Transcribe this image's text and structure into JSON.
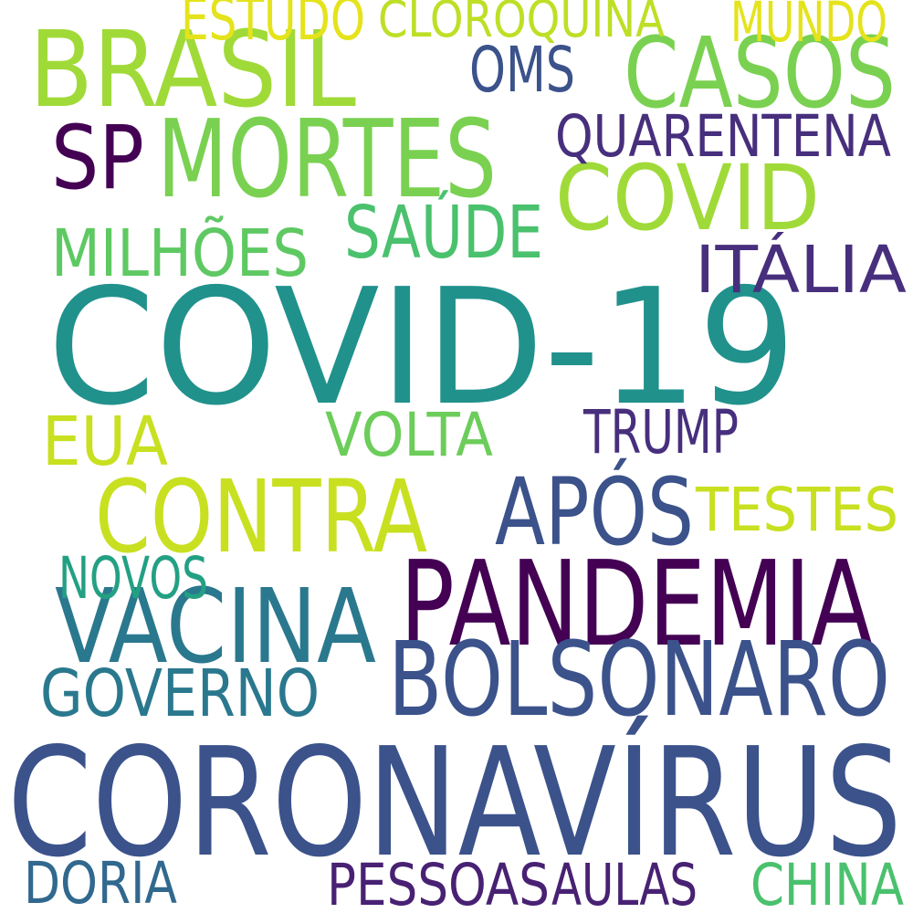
{
  "words": [
    {
      "text": "COVID-19",
      "color": "#21918c"
    },
    {
      "text": "CORONAVÍRUS",
      "color": "#3b528b"
    },
    {
      "text": "PANDEMIA",
      "color": "#440154"
    },
    {
      "text": "BRASIL",
      "color": "#a0da39"
    },
    {
      "text": "CASOS",
      "color": "#7ad151"
    },
    {
      "text": "MORTES",
      "color": "#7ad151"
    },
    {
      "text": "COVID",
      "color": "#a0da39"
    },
    {
      "text": "CONTRA",
      "color": "#c8e020"
    },
    {
      "text": "BOLSONARO",
      "color": "#3b528b"
    },
    {
      "text": "VACINA",
      "color": "#2a788e"
    },
    {
      "text": "APÓS",
      "color": "#3b528b"
    },
    {
      "text": "SP",
      "color": "#440154"
    },
    {
      "text": "SAÚDE",
      "color": "#4ac16d"
    },
    {
      "text": "MILHÕES",
      "color": "#5ec962"
    },
    {
      "text": "ITÁLIA",
      "color": "#472f7d"
    },
    {
      "text": "QUARENTENA",
      "color": "#472f7d"
    },
    {
      "text": "OMS",
      "color": "#3b528b"
    },
    {
      "text": "ESTUDO",
      "color": "#e4e31c"
    },
    {
      "text": "CLOROQUINA",
      "color": "#bddf26"
    },
    {
      "text": "MUNDO",
      "color": "#e4e31c"
    },
    {
      "text": "EUA",
      "color": "#c8e020"
    },
    {
      "text": "VOLTA",
      "color": "#6ccd5a"
    },
    {
      "text": "TRUMP",
      "color": "#472f7d"
    },
    {
      "text": "TESTES",
      "color": "#c8e020"
    },
    {
      "text": "NOVOS",
      "color": "#23a083"
    },
    {
      "text": "GOVERNO",
      "color": "#2a788e"
    },
    {
      "text": "DORIA",
      "color": "#31688e"
    },
    {
      "text": "PESSOAS",
      "color": "#482173"
    },
    {
      "text": "AULAS",
      "color": "#482173"
    },
    {
      "text": "CHINA",
      "color": "#4ac16d"
    }
  ]
}
